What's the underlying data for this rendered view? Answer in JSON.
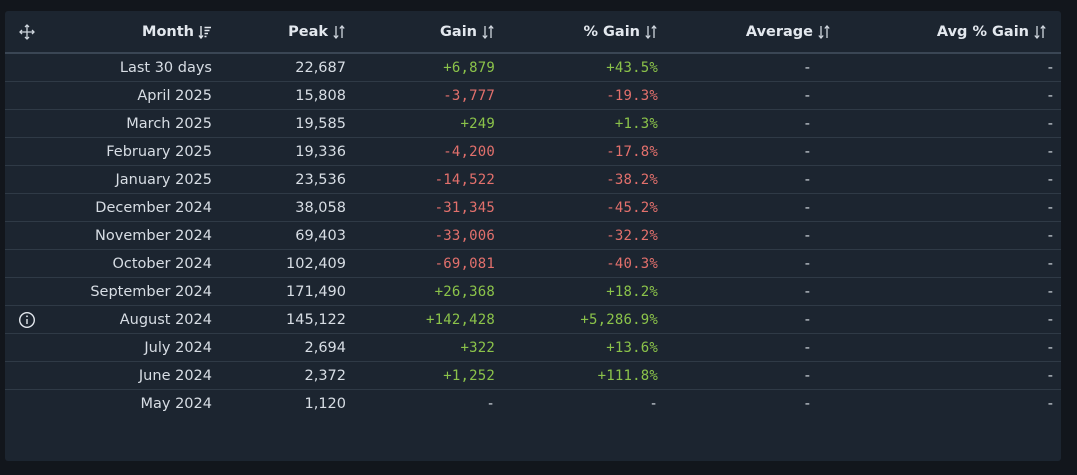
{
  "header": {
    "month_label": "Month",
    "peak_label": "Peak",
    "gain_label": "Gain",
    "pct_gain_label": "% Gain",
    "average_label": "Average",
    "avg_pct_gain_label": "Avg % Gain",
    "icons": {
      "corner": "move-arrows-icon",
      "month_sort": "sort-desc-active-icon",
      "other_sort": "sort-updown-icon"
    }
  },
  "rows": [
    {
      "month": "Last 30 days",
      "peak": "22,687",
      "gain": "+6,879",
      "pct_gain": "+43.5%",
      "average": "-",
      "avg_pct_gain": "-",
      "trend": "pos"
    },
    {
      "month": "April 2025",
      "peak": "15,808",
      "gain": "-3,777",
      "pct_gain": "-19.3%",
      "average": "-",
      "avg_pct_gain": "-",
      "trend": "neg"
    },
    {
      "month": "March 2025",
      "peak": "19,585",
      "gain": "+249",
      "pct_gain": "+1.3%",
      "average": "-",
      "avg_pct_gain": "-",
      "trend": "pos"
    },
    {
      "month": "February 2025",
      "peak": "19,336",
      "gain": "-4,200",
      "pct_gain": "-17.8%",
      "average": "-",
      "avg_pct_gain": "-",
      "trend": "neg"
    },
    {
      "month": "January 2025",
      "peak": "23,536",
      "gain": "-14,522",
      "pct_gain": "-38.2%",
      "average": "-",
      "avg_pct_gain": "-",
      "trend": "neg"
    },
    {
      "month": "December 2024",
      "peak": "38,058",
      "gain": "-31,345",
      "pct_gain": "-45.2%",
      "average": "-",
      "avg_pct_gain": "-",
      "trend": "neg"
    },
    {
      "month": "November 2024",
      "peak": "69,403",
      "gain": "-33,006",
      "pct_gain": "-32.2%",
      "average": "-",
      "avg_pct_gain": "-",
      "trend": "neg"
    },
    {
      "month": "October 2024",
      "peak": "102,409",
      "gain": "-69,081",
      "pct_gain": "-40.3%",
      "average": "-",
      "avg_pct_gain": "-",
      "trend": "neg"
    },
    {
      "month": "September 2024",
      "peak": "171,490",
      "gain": "+26,368",
      "pct_gain": "+18.2%",
      "average": "-",
      "avg_pct_gain": "-",
      "trend": "pos"
    },
    {
      "month": "August 2024",
      "peak": "145,122",
      "gain": "+142,428",
      "pct_gain": "+5,286.9%",
      "average": "-",
      "avg_pct_gain": "-",
      "trend": "pos",
      "icon": "info-icon"
    },
    {
      "month": "July 2024",
      "peak": "2,694",
      "gain": "+322",
      "pct_gain": "+13.6%",
      "average": "-",
      "avg_pct_gain": "-",
      "trend": "pos"
    },
    {
      "month": "June 2024",
      "peak": "2,372",
      "gain": "+1,252",
      "pct_gain": "+111.8%",
      "average": "-",
      "avg_pct_gain": "-",
      "trend": "pos"
    },
    {
      "month": "May 2024",
      "peak": "1,120",
      "gain": "-",
      "pct_gain": "-",
      "average": "-",
      "avg_pct_gain": "-",
      "trend": "none"
    }
  ],
  "colors": {
    "positive": "#8bc34a",
    "negative": "#e2706c",
    "panel_bg": "#1c2530",
    "page_bg": "#12161c"
  }
}
